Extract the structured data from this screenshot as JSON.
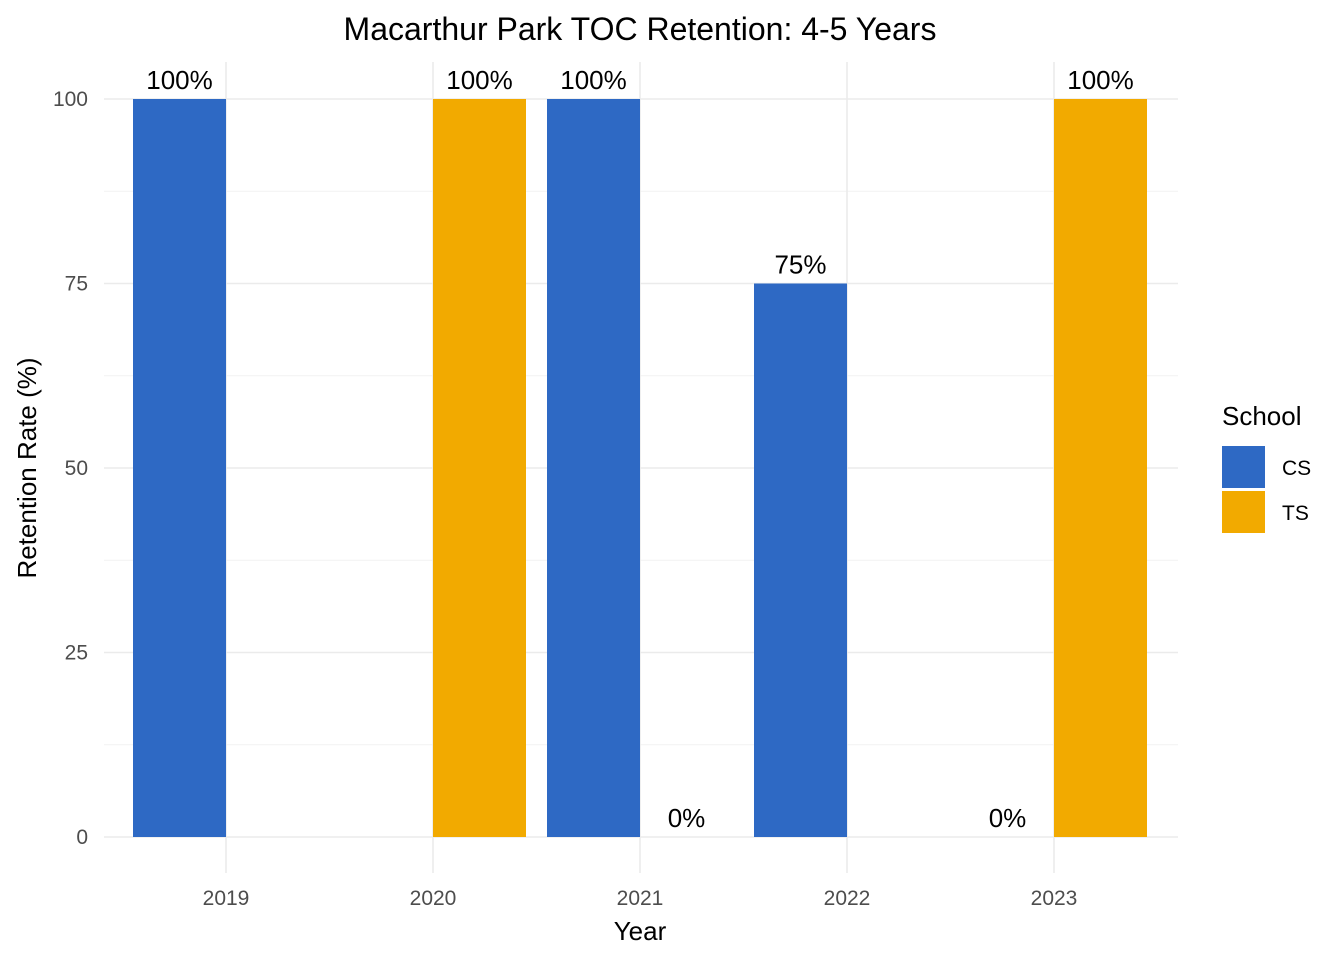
{
  "chart_data": {
    "type": "bar",
    "title": "Macarthur Park TOC Retention: 4-5 Years",
    "xlabel": "Year",
    "ylabel": "Retention Rate (%)",
    "categories": [
      "2019",
      "2020",
      "2021",
      "2022",
      "2023"
    ],
    "ylim": [
      0,
      100
    ],
    "yticks": [
      0,
      25,
      50,
      75,
      100
    ],
    "yticklabels": [
      "0",
      "25",
      "50",
      "75",
      "100"
    ],
    "grid": true,
    "legend": {
      "title": "School",
      "position": "right"
    },
    "series": [
      {
        "name": "CS",
        "color": "#2E69C4",
        "values": [
          100,
          null,
          100,
          75,
          0
        ],
        "labels": [
          "100%",
          "",
          "100%",
          "75%",
          "0%"
        ]
      },
      {
        "name": "TS",
        "color": "#F2AA00",
        "values": [
          null,
          100,
          0,
          null,
          100
        ],
        "labels": [
          "",
          "100%",
          "0%",
          "",
          "100%"
        ]
      }
    ]
  }
}
